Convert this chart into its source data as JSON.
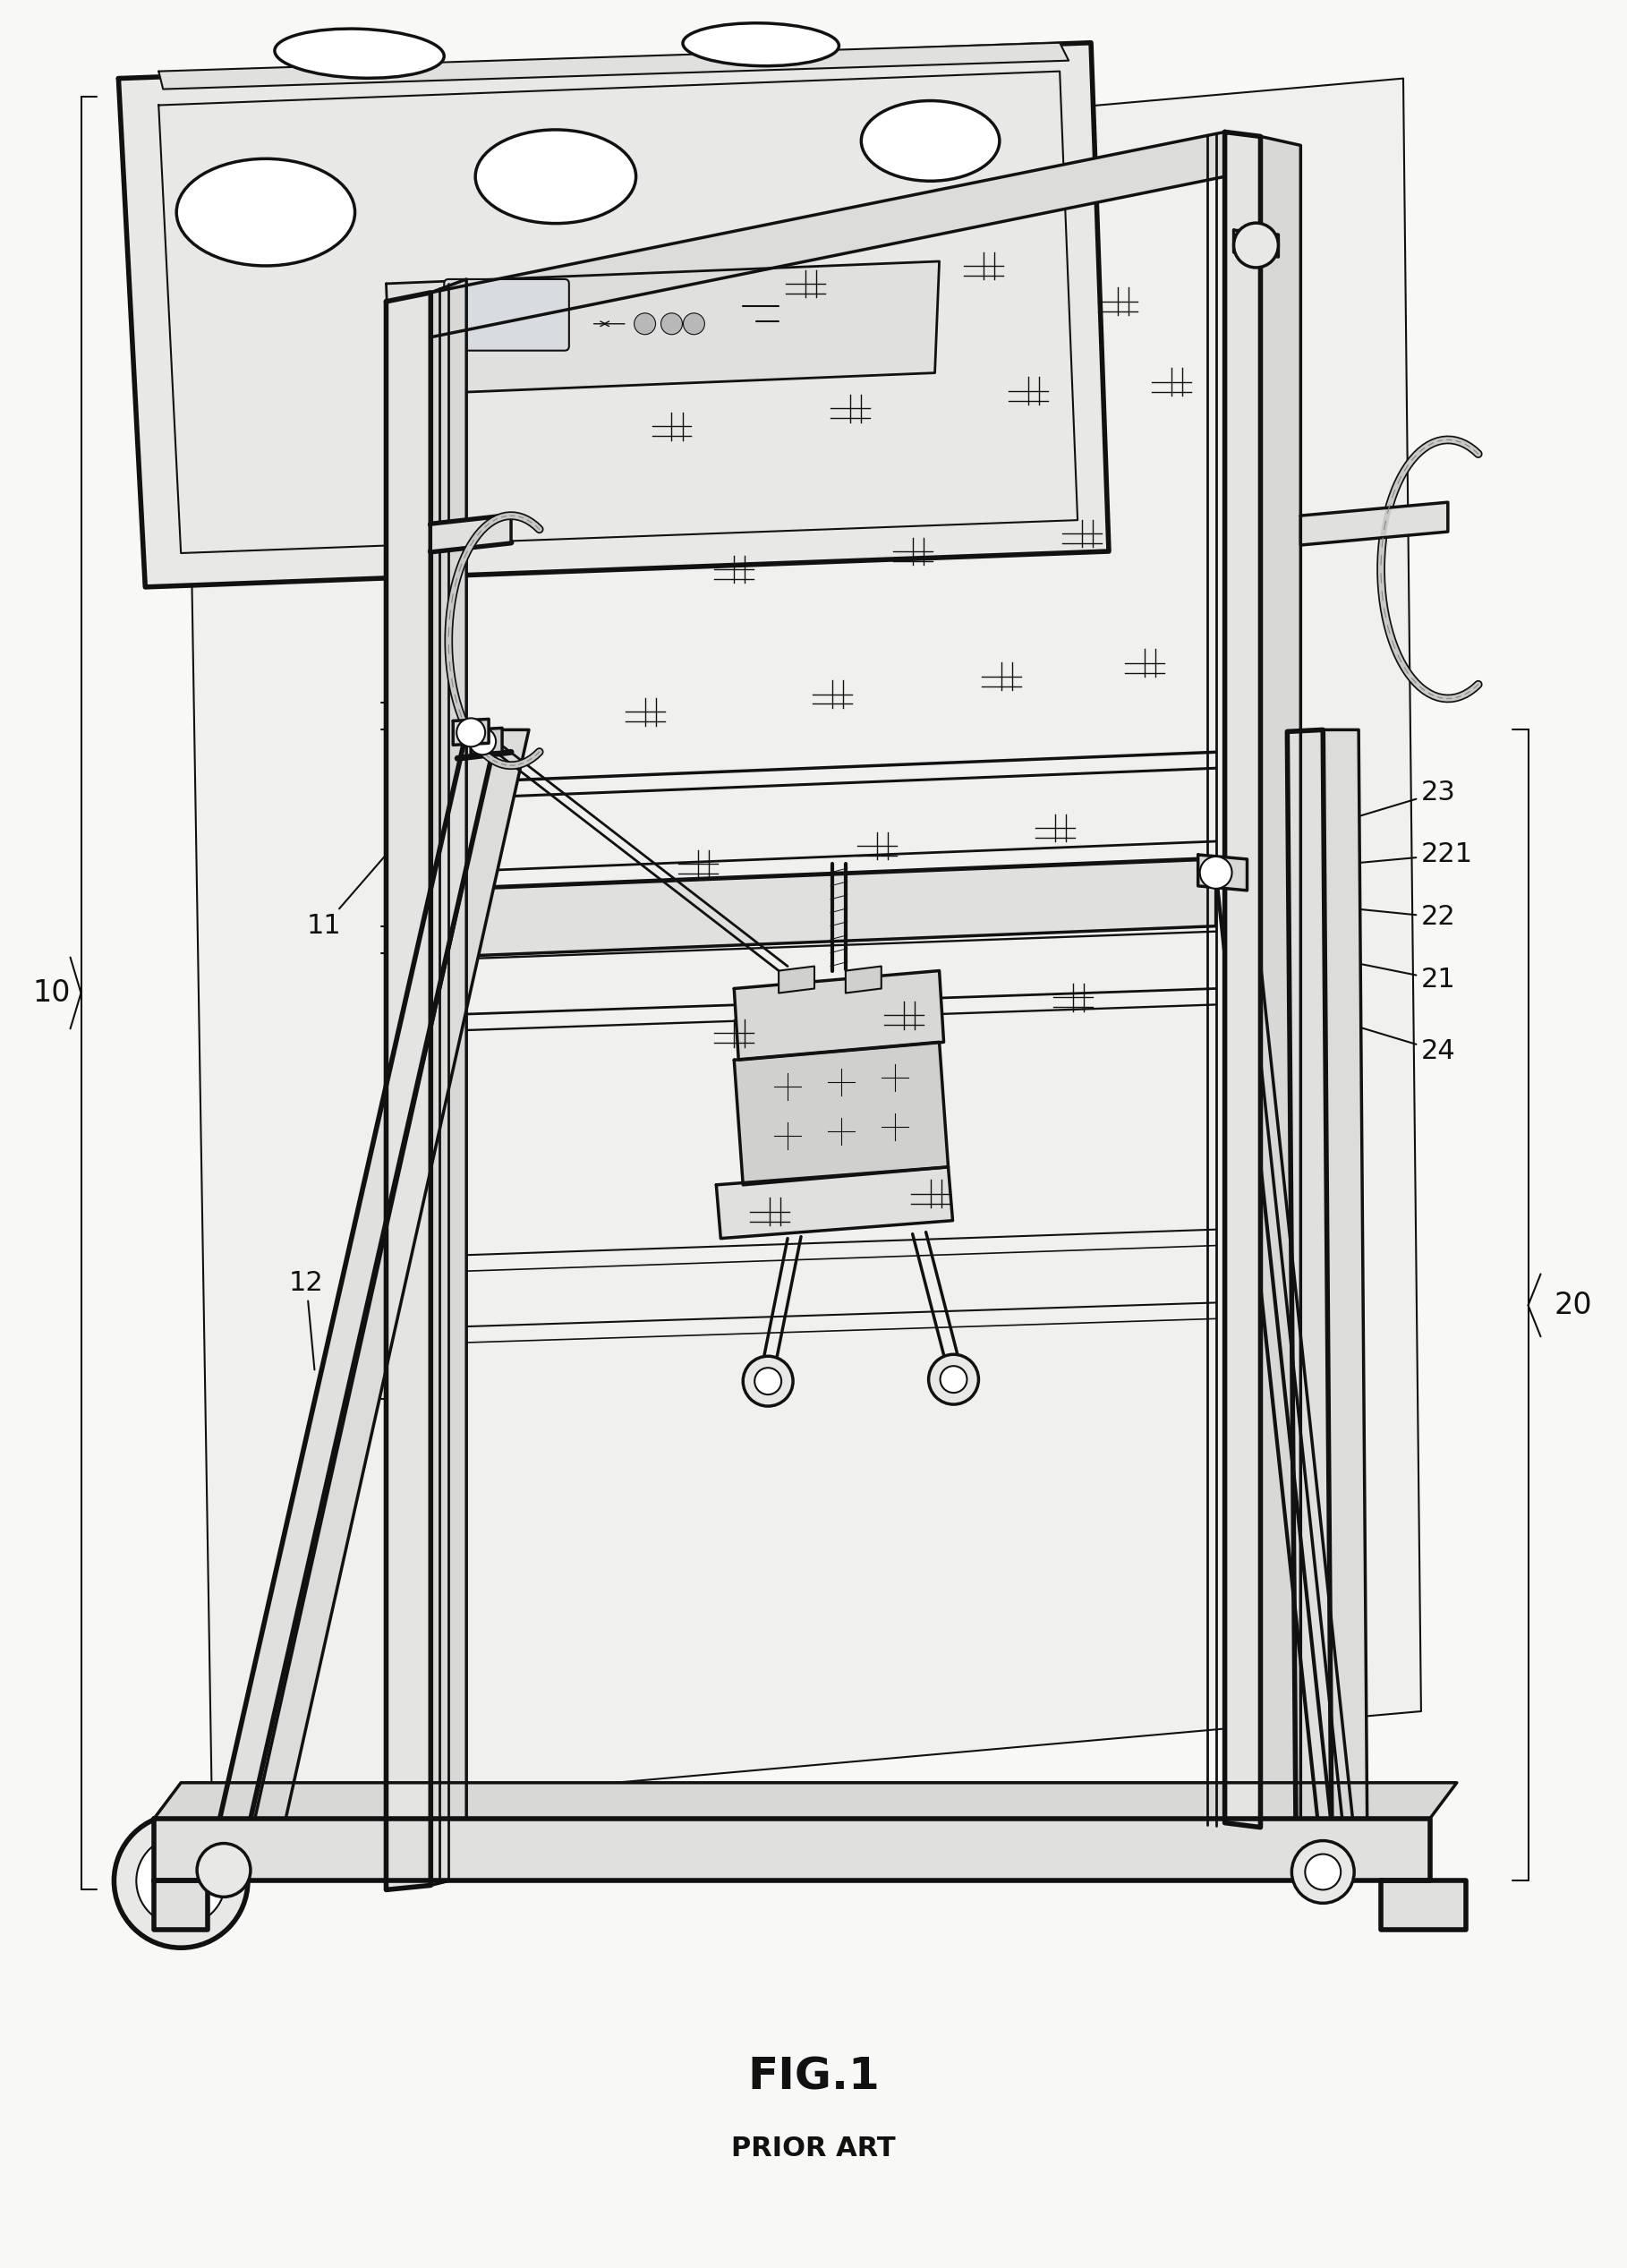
{
  "fig_label": "FIG.1",
  "fig_sublabel": "PRIOR ART",
  "fig_label_fontsize": 36,
  "fig_sublabel_fontsize": 22,
  "background_color": "#f8f8f6",
  "line_color": "#111111",
  "label_color": "#111111",
  "annotation_fontsize": 20
}
